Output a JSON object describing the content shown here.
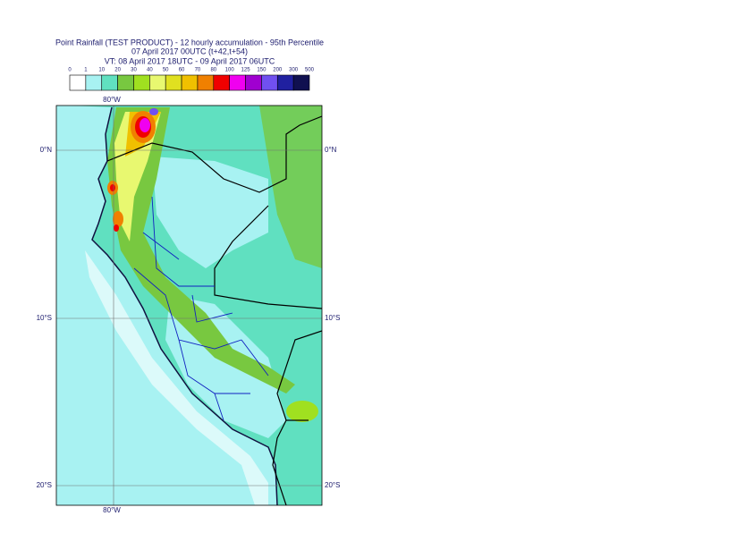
{
  "title": "Point Rainfall (TEST PRODUCT) - 12 hourly accumulation - 95th Percentile",
  "subtitle": "07 April 2017 00UTC (t+42,t+54)",
  "valid_time": "VT: 08 April 2017 18UTC - 09 April 2017 06UTC",
  "legend": {
    "labels": [
      0,
      1,
      10,
      20,
      30,
      40,
      50,
      60,
      70,
      80,
      100,
      125,
      150,
      200,
      300,
      500
    ],
    "colors": [
      "#ffffff",
      "#a8f2f2",
      "#60e0c0",
      "#78c840",
      "#a0e020",
      "#e8f870",
      "#e0e020",
      "#f0c000",
      "#f08000",
      "#f00000",
      "#f000f0",
      "#a000d0",
      "#7050f0",
      "#2020a0",
      "#101050"
    ]
  },
  "grid_labels": {
    "top": "80°W",
    "bottom": "80°W",
    "left": [
      "0°N",
      "10°S",
      "20°S"
    ],
    "right": [
      "0°N",
      "10°S",
      "20°S"
    ]
  }
}
